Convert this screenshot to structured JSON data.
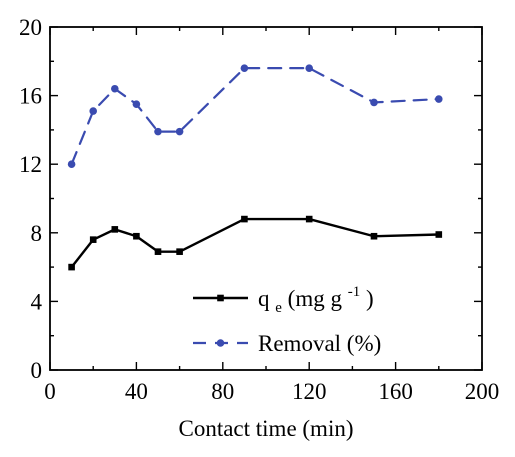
{
  "chart_data": {
    "type": "line",
    "title": "",
    "xlabel": "Contact time (min)",
    "ylabel": "",
    "xlim": [
      0,
      200
    ],
    "ylim": [
      0,
      20
    ],
    "x_ticks": [
      "0",
      "40",
      "80",
      "120",
      "160",
      "200"
    ],
    "y_ticks": [
      "0",
      "4",
      "8",
      "12",
      "16",
      "20"
    ],
    "grid": false,
    "legend_position": "bottom-center",
    "series": [
      {
        "name_parts": {
          "symbol": "q",
          "subscript": "e",
          "unit_prefix": " (mg g",
          "superscript": "-1",
          "unit_suffix": ")"
        },
        "color": "#000000",
        "line_style": "solid",
        "marker": "square",
        "x": [
          10,
          20,
          30,
          40,
          50,
          60,
          90,
          120,
          150,
          180
        ],
        "y": [
          6.0,
          7.6,
          8.2,
          7.8,
          6.9,
          6.9,
          8.8,
          8.8,
          7.8,
          7.9
        ]
      },
      {
        "name": "Removal (%)",
        "color": "#3a4bb0",
        "line_style": "dashed",
        "marker": "circle",
        "x": [
          10,
          20,
          30,
          40,
          50,
          60,
          90,
          120,
          150,
          180
        ],
        "y": [
          12.0,
          15.1,
          16.4,
          15.5,
          13.9,
          13.9,
          17.6,
          17.6,
          15.6,
          15.8
        ]
      }
    ]
  }
}
